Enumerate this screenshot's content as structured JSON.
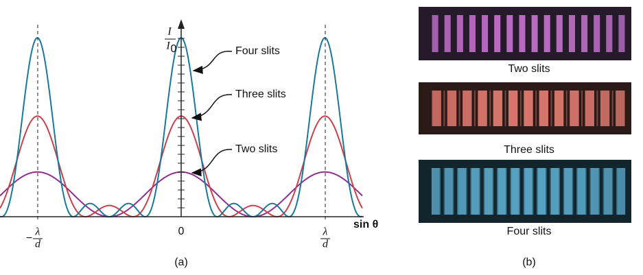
{
  "panel_a": {
    "curve_labels": [
      "Four slits",
      "Three slits",
      "Two slits"
    ],
    "y_axis_label": {
      "numerator": "I",
      "denominator": "I",
      "denominator_subscript": "0"
    },
    "x_axis_label": "sin θ",
    "x_tick_labels": [
      {
        "sign": "−",
        "numerator": "λ",
        "denominator": "d"
      },
      {
        "label": "0"
      },
      {
        "numerator": "λ",
        "denominator": "d"
      }
    ],
    "panel_label": "(a)"
  },
  "panel_b": {
    "captions": [
      "Two slits",
      "Three slits",
      "Four slits"
    ],
    "panel_label": "(b)"
  }
}
